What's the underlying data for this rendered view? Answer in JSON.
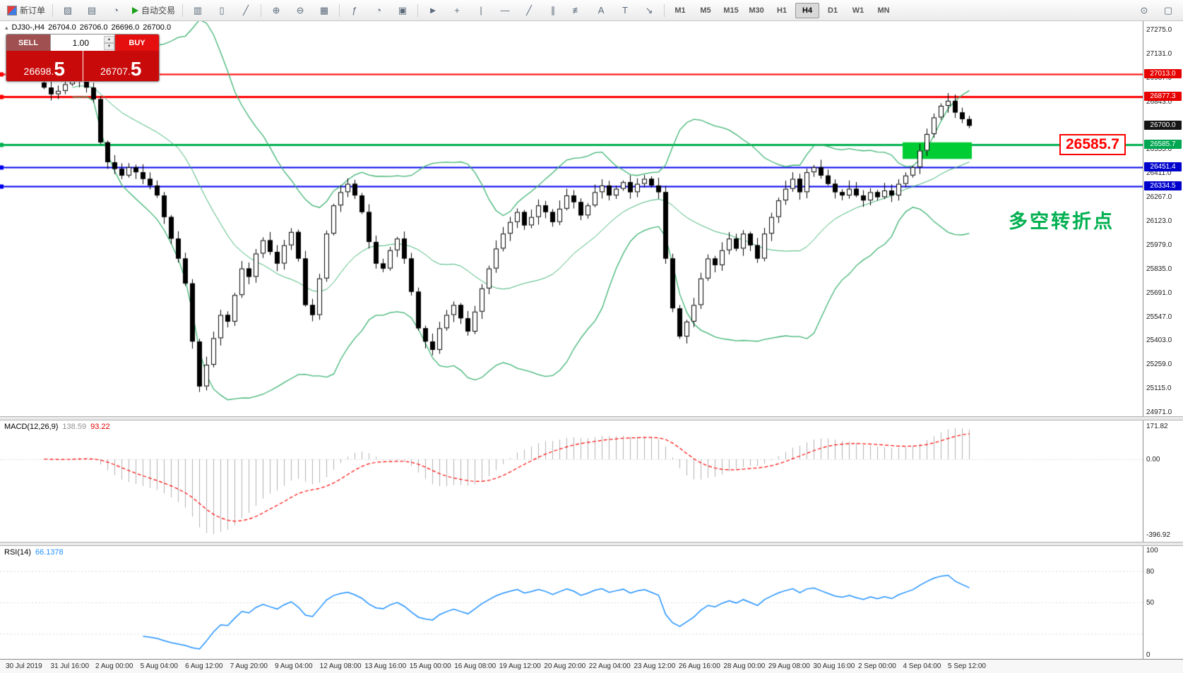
{
  "toolbar": {
    "new_order_label": "新订单",
    "autotrading_label": "自动交易",
    "left_icons": [
      {
        "name": "templates-icon",
        "glyph": "▨"
      },
      {
        "name": "profiles-icon",
        "glyph": "▤"
      },
      {
        "name": "refresh-icon",
        "glyph": "◔"
      }
    ],
    "chart_type_icons": [
      {
        "name": "bar-chart-icon",
        "glyph": "▥"
      },
      {
        "name": "candlestick-chart-icon",
        "glyph": "▯"
      },
      {
        "name": "line-chart-icon",
        "glyph": "╱"
      }
    ],
    "zoom_icons": [
      {
        "name": "zoom-in-icon",
        "glyph": "⊕"
      },
      {
        "name": "zoom-out-icon",
        "glyph": "⊖"
      },
      {
        "name": "tile-windows-icon",
        "glyph": "▦"
      }
    ],
    "tool_icons": [
      {
        "name": "indicators-icon",
        "glyph": "ƒ"
      },
      {
        "name": "period-icon",
        "glyph": "◔"
      },
      {
        "name": "camera-icon",
        "glyph": "▣"
      }
    ],
    "draw_icons": [
      {
        "name": "cursor-icon",
        "glyph": "►"
      },
      {
        "name": "crosshair-icon",
        "glyph": "+"
      },
      {
        "name": "vertical-line-icon",
        "glyph": "|"
      },
      {
        "name": "horizontal-line-icon",
        "glyph": "—"
      },
      {
        "name": "trendline-icon",
        "glyph": "╱"
      },
      {
        "name": "channel-icon",
        "glyph": "∥"
      },
      {
        "name": "fibonacci-icon",
        "glyph": "≢"
      },
      {
        "name": "text-icon",
        "glyph": "A"
      },
      {
        "name": "label-icon",
        "glyph": "T"
      },
      {
        "name": "arrows-icon",
        "glyph": "↘"
      }
    ],
    "timeframes": [
      "M1",
      "M5",
      "M15",
      "M30",
      "H1",
      "H4",
      "D1",
      "W1",
      "MN"
    ],
    "active_timeframe": "H4",
    "right_icons": [
      {
        "name": "search-icon",
        "glyph": "⊙"
      },
      {
        "name": "new-window-icon",
        "glyph": "▢"
      }
    ]
  },
  "one_click": {
    "sell_label": "SELL",
    "buy_label": "BUY",
    "volume": "1.00",
    "sell_price": {
      "prefix": "26698.",
      "big": "5"
    },
    "buy_price": {
      "prefix": "26707.",
      "big": "5"
    }
  },
  "chart": {
    "title": {
      "marker": "▴",
      "symbol": "DJ30-,H4",
      "open": "26704.0",
      "high": "26706.0",
      "low": "26696.0",
      "close": "26700.0"
    },
    "price_axis_ticks": [
      "27275.0",
      "27131.0",
      "26987.0",
      "26843.0",
      "26699.0",
      "26555.0",
      "26411.0",
      "26267.0",
      "26123.0",
      "25979.0",
      "25835.0",
      "25691.0",
      "25547.0",
      "25403.0",
      "25259.0",
      "25115.0",
      "24971.0"
    ],
    "price_tags": [
      {
        "text": "27013.0",
        "color": "#e60000",
        "price": 27013.0
      },
      {
        "text": "26877.3",
        "color": "#e60000",
        "price": 26877.3
      },
      {
        "text": "26700.0",
        "color": "#141414",
        "price": 26700.0
      },
      {
        "text": "26585.7",
        "color": "#00a651",
        "price": 26585.7
      },
      {
        "text": "26451.4",
        "color": "#0000cd",
        "price": 26451.4
      },
      {
        "text": "26334.5",
        "color": "#0000cd",
        "price": 26334.5
      }
    ],
    "hlines": [
      {
        "price": 27013.0,
        "color": "#ff0000",
        "width": 2
      },
      {
        "price": 26877.3,
        "color": "#ff0000",
        "width": 3
      },
      {
        "price": 26585.7,
        "color": "#00b050",
        "width": 3
      },
      {
        "price": 26451.4,
        "color": "#0000ee",
        "width": 2
      },
      {
        "price": 26334.5,
        "color": "#0000ee",
        "width": 2
      }
    ],
    "highlight_box": {
      "from_candle": 122,
      "to_candle": 131,
      "price_top": 26600,
      "price_bottom": 26500,
      "color": "#00cc33"
    },
    "callout": {
      "text": "26585.7",
      "price": 26585.7
    },
    "annotation": {
      "text": "多空转折点"
    },
    "time_labels": [
      "30 Jul 2019",
      "31 Jul 16:00",
      "2 Aug 00:00",
      "5 Aug 04:00",
      "6 Aug 12:00",
      "7 Aug 20:00",
      "9 Aug 04:00",
      "12 Aug 08:00",
      "13 Aug 16:00",
      "15 Aug 00:00",
      "16 Aug 08:00",
      "19 Aug 12:00",
      "20 Aug 20:00",
      "22 Aug 04:00",
      "23 Aug 12:00",
      "26 Aug 16:00",
      "28 Aug 00:00",
      "29 Aug 08:00",
      "30 Aug 16:00",
      "2 Sep 00:00",
      "4 Sep 04:00",
      "5 Sep 12:00"
    ]
  },
  "chart_data": {
    "type": "candlestick",
    "symbol": "DJ30-",
    "period": "H4",
    "price_axis_range": [
      24950,
      27330
    ],
    "first_open": 26960,
    "closes": [
      26930,
      26890,
      26910,
      26950,
      26970,
      26990,
      26930,
      26860,
      26600,
      26480,
      26440,
      26400,
      26450,
      26420,
      26380,
      26340,
      26280,
      26150,
      26020,
      25900,
      25750,
      25400,
      25130,
      25260,
      25420,
      25560,
      25520,
      25680,
      25840,
      25790,
      25930,
      26010,
      25940,
      25870,
      25980,
      26060,
      25900,
      25620,
      25560,
      25780,
      26050,
      26220,
      26300,
      26350,
      26280,
      26180,
      26000,
      25870,
      25840,
      25950,
      26020,
      25900,
      25700,
      25480,
      25400,
      25350,
      25480,
      25560,
      25620,
      25540,
      25460,
      25580,
      25720,
      25840,
      25960,
      26050,
      26120,
      26180,
      26100,
      26150,
      26220,
      26180,
      26120,
      26200,
      26280,
      26240,
      26160,
      26220,
      26300,
      26340,
      26280,
      26320,
      26360,
      26300,
      26350,
      26380,
      26340,
      26300,
      25900,
      25600,
      25430,
      25520,
      25620,
      25780,
      25900,
      25860,
      25950,
      26020,
      25960,
      26050,
      25980,
      25900,
      26050,
      26150,
      26250,
      26320,
      26380,
      26300,
      26420,
      26450,
      26400,
      26350,
      26300,
      26280,
      26320,
      26280,
      26250,
      26300,
      26270,
      26310,
      26280,
      26350,
      26400,
      26450,
      26550,
      26650,
      26750,
      26820,
      26850,
      26780,
      26740,
      26700
    ],
    "overlays": [
      {
        "type": "bollinger",
        "period": 20,
        "deviation": 2
      }
    ],
    "indicators": [
      {
        "type": "MACD",
        "params": [
          12,
          26,
          9
        ],
        "current_values": [
          "138.59",
          "93.22"
        ]
      },
      {
        "type": "RSI",
        "params": [
          14
        ],
        "current_value": "66.1378"
      }
    ]
  },
  "macd_panel": {
    "label": "MACD(12,26,9)",
    "main_value": "138.59",
    "signal_value": "93.22",
    "axis": [
      {
        "text": "171.82",
        "value": 171.82
      },
      {
        "text": "0.00",
        "value": 0
      },
      {
        "text": "-396.92",
        "value": -396.92
      }
    ]
  },
  "rsi_panel": {
    "label": "RSI(14)",
    "value": "66.1378",
    "axis": [
      {
        "text": "100",
        "value": 100
      },
      {
        "text": "80",
        "value": 80
      },
      {
        "text": "50",
        "value": 50
      },
      {
        "text": "0",
        "value": 0
      }
    ],
    "levels": [
      80,
      50,
      20
    ]
  },
  "colors": {
    "band": "#3cb371",
    "hist": "#b0b0b0",
    "signal": "#ff0000",
    "rsi": "#1e90ff",
    "up_body": "#ffffff",
    "down_body": "#000000",
    "wick": "#000000",
    "annotation": "#00b050",
    "callout": "#ff0000"
  }
}
